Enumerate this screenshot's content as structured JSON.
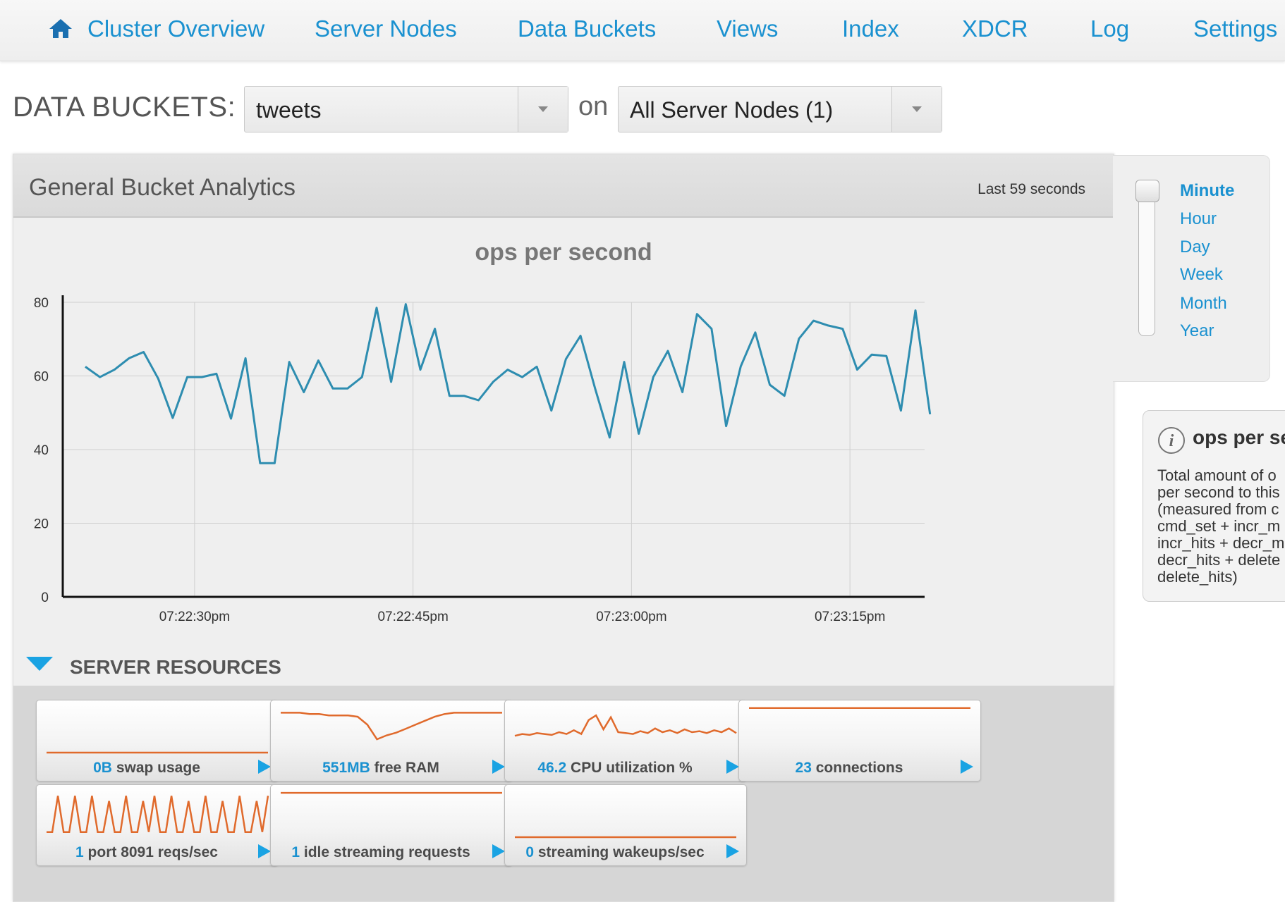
{
  "nav": {
    "items": [
      "Cluster Overview",
      "Server Nodes",
      "Data Buckets",
      "Views",
      "Index",
      "XDCR",
      "Log",
      "Settings"
    ]
  },
  "selector": {
    "title": "DATA BUCKETS:",
    "bucket": "tweets",
    "on_label": "on",
    "nodes": "All Server Nodes (1)"
  },
  "panel": {
    "title": "General Bucket Analytics",
    "range_label": "Last 59 seconds"
  },
  "chart_data": {
    "type": "line",
    "title": "ops per second",
    "xlabel": "",
    "ylabel": "",
    "ylim": [
      0,
      80
    ],
    "yticks": [
      0,
      20,
      40,
      60,
      80
    ],
    "xticks": [
      "07:22:30pm",
      "07:22:45pm",
      "07:23:00pm",
      "07:23:15pm"
    ],
    "grid": true,
    "color": "#2e8db0",
    "series": [
      {
        "values": [
          62.5,
          59.7,
          61.7,
          64.8,
          66.5,
          59.3,
          48.6,
          59.7,
          59.7,
          60.6,
          48.4,
          64.8,
          36.3,
          36.3,
          63.8,
          55.6,
          64.2,
          56.6,
          56.6,
          59.7,
          78.5,
          58.4,
          79.5,
          61.7,
          72.8,
          54.6,
          54.6,
          53.4,
          58.4,
          61.7,
          59.7,
          62.5,
          50.6,
          64.6,
          70.9,
          56.6,
          43.3,
          63.8,
          44.3,
          59.7,
          66.8,
          55.6,
          76.8,
          72.8,
          46.4,
          62.6,
          71.8,
          57.6,
          54.6,
          70.1,
          75.0,
          73.7,
          72.8,
          61.7,
          65.8,
          65.4,
          50.6,
          77.8,
          49.6
        ]
      }
    ]
  },
  "resources": {
    "header": "SERVER RESOURCES",
    "cards": [
      {
        "value": "0B",
        "label": "swap usage",
        "sparkline": [
          0,
          0,
          0,
          0,
          0,
          0,
          0,
          0,
          0,
          0,
          0,
          0,
          0,
          0,
          0,
          0,
          0,
          0,
          0,
          0
        ],
        "smin": 0,
        "smax": 1
      },
      {
        "value": "551MB",
        "label": "free RAM",
        "sparkline": [
          560,
          560,
          560,
          559,
          559,
          558,
          558,
          558,
          557,
          551,
          540,
          543,
          545,
          548,
          551,
          554,
          557,
          559,
          560,
          560,
          560,
          560,
          560,
          560
        ],
        "smin": 530,
        "smax": 565
      },
      {
        "value": "46.2",
        "label": "CPU utilization %",
        "sparkline": [
          38,
          40,
          39,
          41,
          40,
          39,
          42,
          40,
          44,
          40,
          55,
          60,
          45,
          58,
          42,
          41,
          40,
          43,
          41,
          46,
          42,
          44,
          41,
          45,
          42,
          43,
          41,
          44,
          42,
          46,
          41
        ],
        "smin": 20,
        "smax": 70
      },
      {
        "value": "23",
        "label": "connections",
        "sparkline": [
          23,
          23,
          23,
          23,
          23,
          23,
          23,
          23,
          23,
          23,
          23,
          23,
          23,
          23,
          23,
          23,
          23,
          23,
          23,
          23
        ],
        "smin": 0,
        "smax": 24
      },
      {
        "value": "1",
        "label": "port 8091 reqs/sec",
        "sparkline": [
          1,
          1,
          8,
          1,
          1,
          8,
          1,
          1,
          8,
          1,
          1,
          7,
          1,
          1,
          8,
          1,
          1,
          7,
          1,
          8,
          1,
          1,
          8,
          1,
          1,
          7,
          1,
          1,
          8,
          1,
          1,
          7,
          1,
          1,
          8,
          1,
          1,
          7,
          1,
          8
        ],
        "smin": 0,
        "smax": 9
      },
      {
        "value": "1",
        "label": "idle streaming requests",
        "sparkline": [
          1,
          1,
          1,
          1,
          1,
          1,
          1,
          1,
          1,
          1,
          1,
          1,
          1,
          1,
          1,
          1,
          1,
          1,
          1,
          1
        ],
        "smin": 0,
        "smax": 1.05
      },
      {
        "value": "0",
        "label": "streaming wakeups/sec",
        "sparkline": [
          0,
          0,
          0,
          0,
          0,
          0,
          0,
          0,
          0,
          0,
          0,
          0,
          0,
          0,
          0,
          0,
          0,
          0,
          0,
          0
        ],
        "smin": 0,
        "smax": 1
      }
    ]
  },
  "zoom": {
    "options": [
      "Minute",
      "Hour",
      "Day",
      "Week",
      "Month",
      "Year"
    ],
    "active": "Minute"
  },
  "info": {
    "title": "ops per se",
    "lines": [
      "Total amount of o",
      "per second to this",
      "(measured from c",
      "cmd_set + incr_m",
      "incr_hits + decr_m",
      "decr_hits + delete",
      "delete_hits)"
    ]
  }
}
